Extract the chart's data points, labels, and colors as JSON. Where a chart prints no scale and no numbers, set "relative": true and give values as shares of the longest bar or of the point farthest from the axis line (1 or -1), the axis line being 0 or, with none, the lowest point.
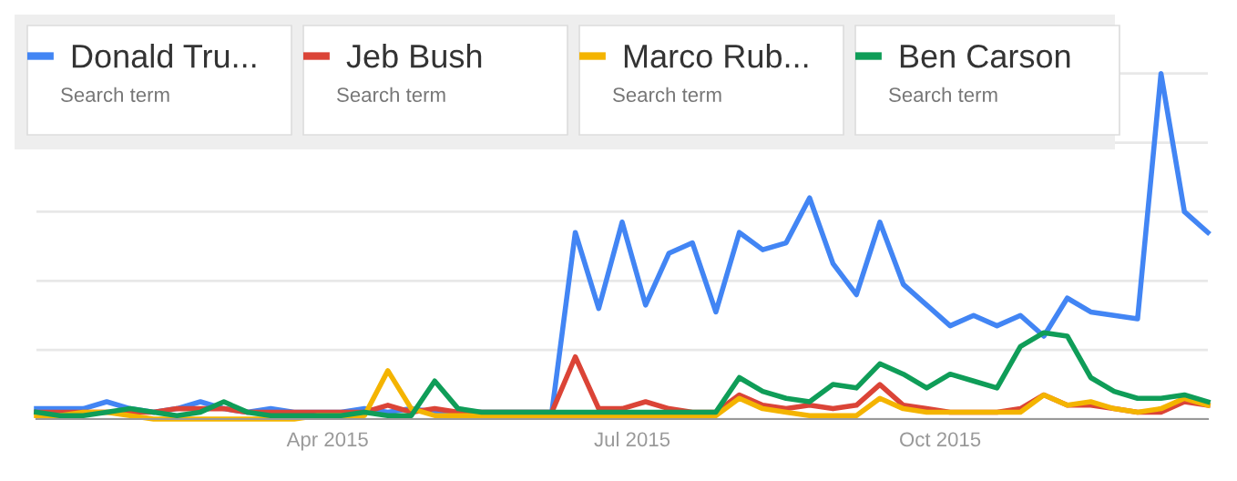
{
  "chart_data": {
    "type": "line",
    "relative": true,
    "grid": "y",
    "legend": "top left",
    "tick_labels": "x",
    "line_style": "solid",
    "marker": "none",
    "x": [
      "2015-01-04",
      "2015-01-11",
      "2015-01-18",
      "2015-01-25",
      "2015-02-01",
      "2015-02-08",
      "2015-02-15",
      "2015-02-22",
      "2015-03-01",
      "2015-03-08",
      "2015-03-15",
      "2015-03-22",
      "2015-03-29",
      "2015-04-05",
      "2015-04-12",
      "2015-04-19",
      "2015-04-26",
      "2015-05-03",
      "2015-05-10",
      "2015-05-17",
      "2015-05-24",
      "2015-05-31",
      "2015-06-07",
      "2015-06-14",
      "2015-06-21",
      "2015-06-28",
      "2015-07-05",
      "2015-07-12",
      "2015-07-19",
      "2015-07-26",
      "2015-08-02",
      "2015-08-09",
      "2015-08-16",
      "2015-08-23",
      "2015-08-30",
      "2015-09-06",
      "2015-09-13",
      "2015-09-20",
      "2015-09-27",
      "2015-10-04",
      "2015-10-11",
      "2015-10-18",
      "2015-10-25",
      "2015-11-01",
      "2015-11-08",
      "2015-11-15",
      "2015-11-22",
      "2015-11-29",
      "2015-12-06",
      "2015-12-13",
      "2015-12-20"
    ],
    "xlim": [
      "2015-01-04",
      "2015-12-20"
    ],
    "xticks": [
      {
        "value": "2015-04-01",
        "label": "Apr 2015"
      },
      {
        "value": "2015-07-01",
        "label": "Jul 2015"
      },
      {
        "value": "2015-10-01",
        "label": "Oct 2015"
      }
    ],
    "series": [
      {
        "name": "Donald Tru...",
        "color": "#4285f4",
        "values": [
          0.03,
          0.03,
          0.03,
          0.05,
          0.03,
          0.02,
          0.03,
          0.05,
          0.03,
          0.02,
          0.03,
          0.02,
          0.02,
          0.02,
          0.03,
          0.02,
          0.03,
          0.02,
          0.02,
          0.02,
          0.02,
          0.02,
          0.02,
          0.54,
          0.32,
          0.57,
          0.33,
          0.48,
          0.51,
          0.31,
          0.54,
          0.49,
          0.51,
          0.64,
          0.45,
          0.36,
          0.57,
          0.39,
          0.33,
          0.27,
          0.3,
          0.27,
          0.3,
          0.24,
          0.35,
          0.31,
          0.3,
          0.29,
          1.0,
          0.6,
          0.54
        ]
      },
      {
        "name": "Jeb Bush",
        "color": "#db4437",
        "values": [
          0.02,
          0.02,
          0.02,
          0.02,
          0.02,
          0.02,
          0.03,
          0.03,
          0.03,
          0.02,
          0.02,
          0.02,
          0.02,
          0.02,
          0.02,
          0.04,
          0.02,
          0.03,
          0.02,
          0.02,
          0.02,
          0.02,
          0.02,
          0.18,
          0.03,
          0.03,
          0.05,
          0.03,
          0.02,
          0.02,
          0.07,
          0.04,
          0.03,
          0.04,
          0.03,
          0.04,
          0.1,
          0.04,
          0.03,
          0.02,
          0.02,
          0.02,
          0.03,
          0.07,
          0.04,
          0.04,
          0.03,
          0.02,
          0.02,
          0.05,
          0.04
        ]
      },
      {
        "name": "Marco Rub...",
        "color": "#f4b400",
        "values": [
          0.01,
          0.01,
          0.02,
          0.02,
          0.01,
          0.0,
          0.0,
          0.0,
          0.0,
          0.0,
          0.0,
          0.0,
          0.01,
          0.01,
          0.01,
          0.14,
          0.03,
          0.01,
          0.01,
          0.01,
          0.01,
          0.01,
          0.01,
          0.01,
          0.01,
          0.01,
          0.01,
          0.01,
          0.01,
          0.01,
          0.06,
          0.03,
          0.02,
          0.01,
          0.01,
          0.01,
          0.06,
          0.03,
          0.02,
          0.02,
          0.02,
          0.02,
          0.02,
          0.07,
          0.04,
          0.05,
          0.03,
          0.02,
          0.03,
          0.06,
          0.04
        ]
      },
      {
        "name": "Ben Carson",
        "color": "#0f9d58",
        "values": [
          0.02,
          0.01,
          0.01,
          0.02,
          0.03,
          0.02,
          0.01,
          0.02,
          0.05,
          0.02,
          0.01,
          0.01,
          0.01,
          0.01,
          0.02,
          0.01,
          0.01,
          0.11,
          0.03,
          0.02,
          0.02,
          0.02,
          0.02,
          0.02,
          0.02,
          0.02,
          0.02,
          0.02,
          0.02,
          0.02,
          0.12,
          0.08,
          0.06,
          0.05,
          0.1,
          0.09,
          0.16,
          0.13,
          0.09,
          0.13,
          0.11,
          0.09,
          0.21,
          0.25,
          0.24,
          0.12,
          0.08,
          0.06,
          0.06,
          0.07,
          0.05
        ]
      }
    ],
    "annotations": [
      "Search term",
      "Search term",
      "Search term",
      "Search term"
    ]
  }
}
